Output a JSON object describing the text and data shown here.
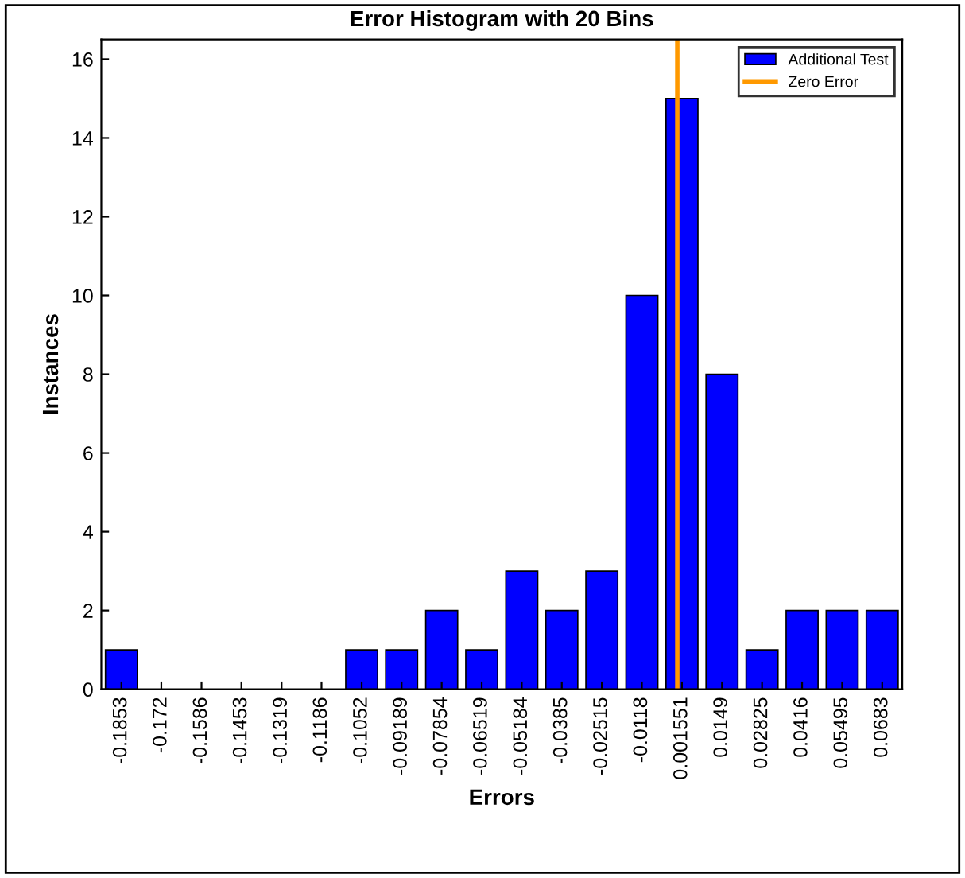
{
  "chart_data": {
    "type": "bar",
    "title": "Error Histogram with 20 Bins",
    "xlabel": "Errors",
    "ylabel": "Instances",
    "x": [
      -0.1853,
      -0.172,
      -0.1586,
      -0.1453,
      -0.1319,
      -0.1186,
      -0.1052,
      -0.09189,
      -0.07854,
      -0.06519,
      -0.05184,
      -0.0385,
      -0.02515,
      -0.0118,
      0.001551,
      0.0149,
      0.02825,
      0.0416,
      0.05495,
      0.0683
    ],
    "series": [
      {
        "name": "Additional Test",
        "color": "#0000ff",
        "values": [
          1,
          0,
          0,
          0,
          0,
          0,
          1,
          1,
          2,
          1,
          3,
          2,
          3,
          10,
          15,
          8,
          1,
          2,
          2,
          2
        ]
      },
      {
        "name": "Zero Error",
        "type": "line",
        "color": "#ff9900",
        "x": [
          0,
          0
        ],
        "values": [
          0,
          16.5
        ]
      }
    ],
    "xlim": [
      -0.192,
      0.075
    ],
    "xticks": [
      -0.1853,
      -0.172,
      -0.1586,
      -0.1453,
      -0.1319,
      -0.1186,
      -0.1052,
      -0.09189,
      -0.07854,
      -0.06519,
      -0.05184,
      -0.0385,
      -0.02515,
      -0.0118,
      0.001551,
      0.0149,
      0.02825,
      0.0416,
      0.05495,
      0.0683
    ],
    "ylim": [
      0,
      16.5
    ],
    "yticks": [
      0,
      2,
      4,
      6,
      8,
      10,
      12,
      14,
      16
    ],
    "legend": "top right",
    "grid": false
  }
}
